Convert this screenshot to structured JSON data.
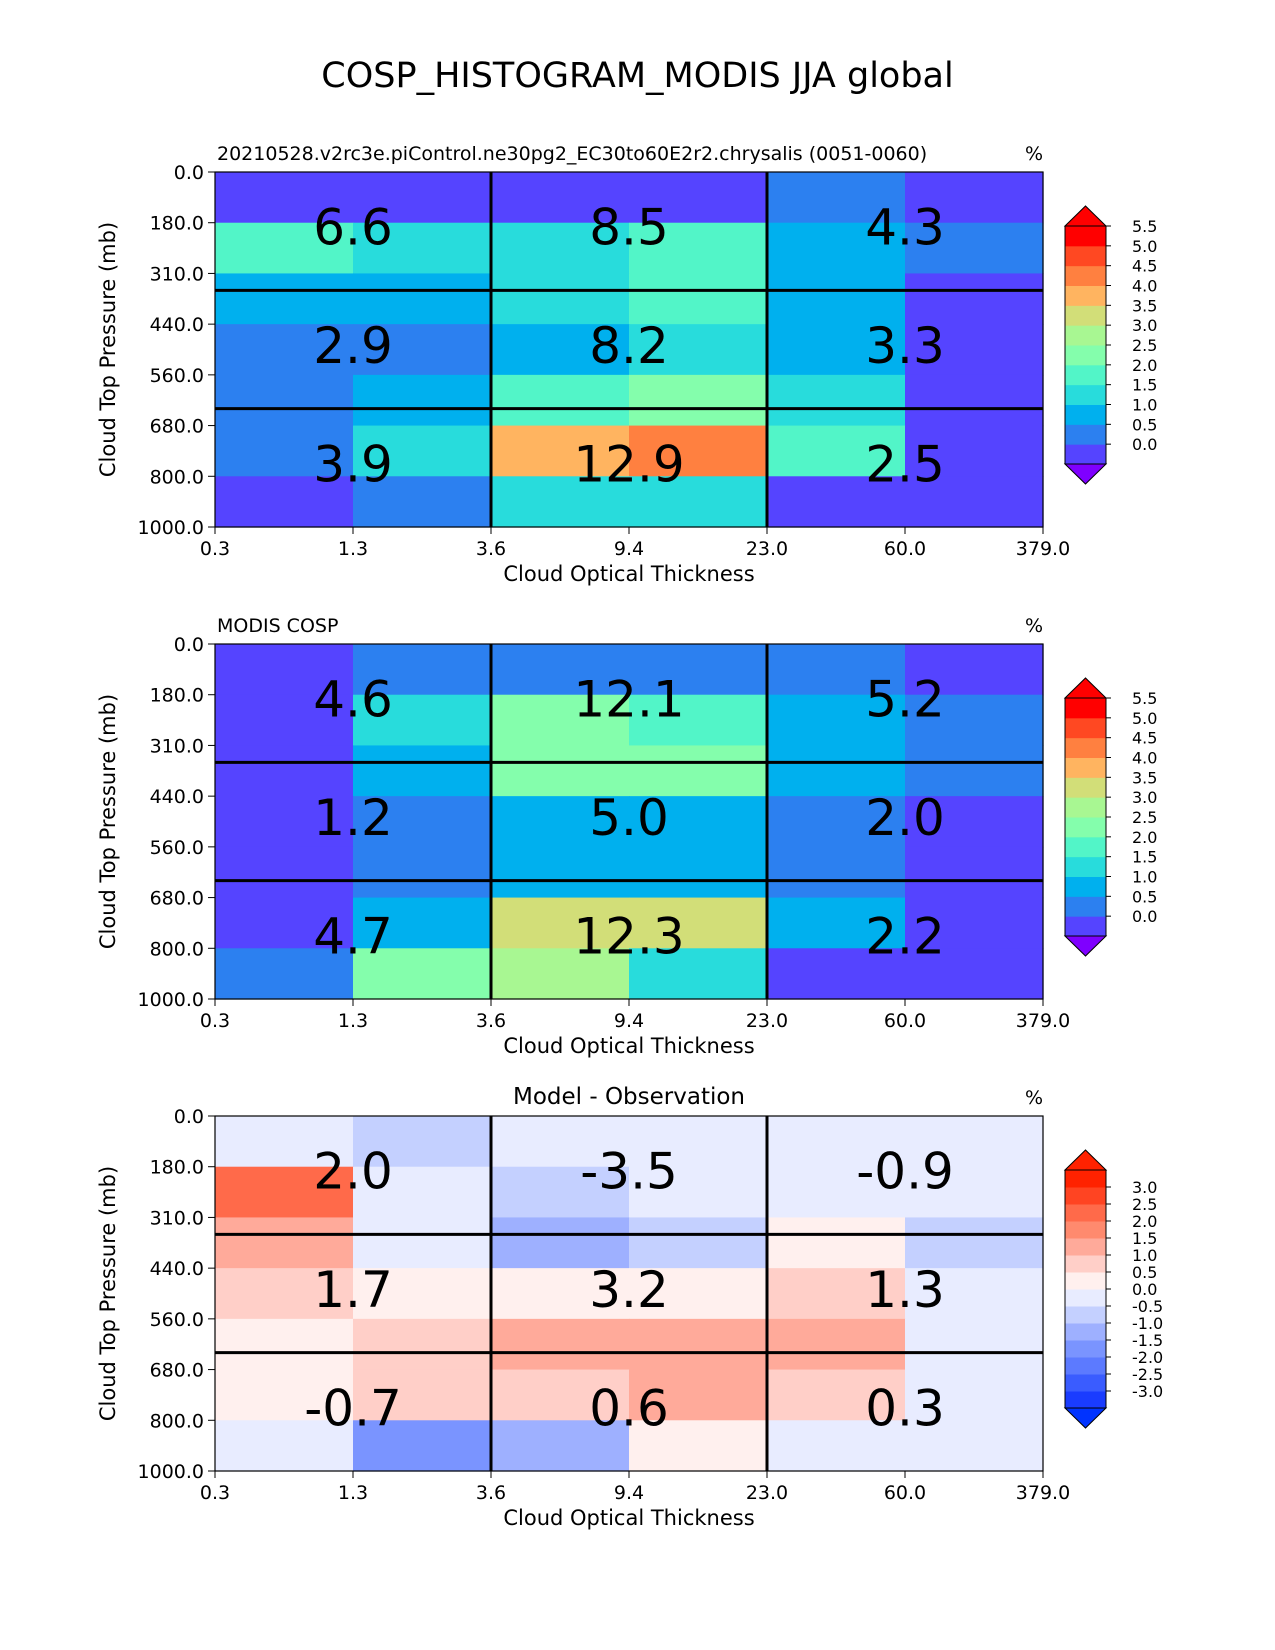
{
  "figure_title": "COSP_HISTOGRAM_MODIS JJA global",
  "chart_data": [
    {
      "type": "heatmap",
      "title": "20210528.v2rc3e.piControl.ne30pg2_EC30to60E2r2.chrysalis (0051-0060)",
      "title_align": "left",
      "units": "%",
      "xlabel": "Cloud Optical Thickness",
      "ylabel": "Cloud Top Pressure (mb)",
      "x_ticks": [
        "0.3",
        "1.3",
        "3.6",
        "9.4",
        "23.0",
        "60.0",
        "379.0"
      ],
      "y_ticks": [
        "0.0",
        "180.0",
        "310.0",
        "440.0",
        "560.0",
        "680.0",
        "800.0",
        "1000.0"
      ],
      "cells": [
        [
          0.25,
          0.25,
          0.25,
          0.25,
          0.75,
          0.25
        ],
        [
          2.25,
          1.75,
          1.75,
          2.25,
          1.25,
          0.75
        ],
        [
          1.25,
          1.25,
          1.75,
          2.25,
          1.25,
          0.25
        ],
        [
          0.75,
          0.75,
          1.25,
          1.75,
          1.25,
          0.25
        ],
        [
          0.75,
          1.25,
          2.25,
          2.75,
          1.75,
          0.25
        ],
        [
          0.75,
          1.75,
          4.25,
          4.75,
          2.25,
          0.25
        ],
        [
          0.25,
          0.75,
          1.75,
          1.75,
          0.25,
          0.25
        ]
      ],
      "annotations": [
        [
          "6.6",
          "8.5",
          "4.3"
        ],
        [
          "2.9",
          "8.2",
          "3.3"
        ],
        [
          "3.9",
          "12.9",
          "2.5"
        ]
      ],
      "colorbar": {
        "levels": [
          0.0,
          0.5,
          1.0,
          1.5,
          2.0,
          2.5,
          3.0,
          3.5,
          4.0,
          4.5,
          5.0,
          5.5
        ],
        "tick_labels": [
          "0.0",
          "0.5",
          "1.0",
          "1.5",
          "2.0",
          "2.5",
          "3.0",
          "3.5",
          "4.0",
          "4.5",
          "5.0",
          "5.5"
        ],
        "colors": [
          "#5544ff",
          "#2c80f0",
          "#00b0ee",
          "#28dcdc",
          "#52f5c8",
          "#84feac",
          "#a8f792",
          "#d2de78",
          "#ffb460",
          "#ff8040",
          "#ff4822",
          "#ff0000"
        ],
        "under_color": "#7f00ff",
        "over_color": "#ff0000"
      }
    },
    {
      "type": "heatmap",
      "title": "MODIS COSP",
      "title_align": "left",
      "units": "%",
      "xlabel": "Cloud Optical Thickness",
      "ylabel": "Cloud Top Pressure (mb)",
      "x_ticks": [
        "0.3",
        "1.3",
        "3.6",
        "9.4",
        "23.0",
        "60.0",
        "379.0"
      ],
      "y_ticks": [
        "0.0",
        "180.0",
        "310.0",
        "440.0",
        "560.0",
        "680.0",
        "800.0",
        "1000.0"
      ],
      "cells": [
        [
          0.25,
          0.75,
          0.75,
          0.75,
          0.75,
          0.25
        ],
        [
          0.25,
          1.75,
          2.75,
          2.25,
          1.25,
          0.75
        ],
        [
          0.25,
          1.25,
          2.75,
          2.75,
          1.25,
          0.75
        ],
        [
          0.25,
          0.75,
          1.25,
          1.25,
          0.75,
          0.25
        ],
        [
          0.25,
          0.75,
          1.25,
          1.25,
          0.75,
          0.25
        ],
        [
          0.25,
          1.25,
          3.75,
          3.75,
          1.25,
          0.25
        ],
        [
          0.75,
          2.75,
          3.25,
          1.75,
          0.25,
          0.25
        ]
      ],
      "annotations": [
        [
          "4.6",
          "12.1",
          "5.2"
        ],
        [
          "1.2",
          "5.0",
          "2.0"
        ],
        [
          "4.7",
          "12.3",
          "2.2"
        ]
      ],
      "colorbar": {
        "levels": [
          0.0,
          0.5,
          1.0,
          1.5,
          2.0,
          2.5,
          3.0,
          3.5,
          4.0,
          4.5,
          5.0,
          5.5
        ],
        "tick_labels": [
          "0.0",
          "0.5",
          "1.0",
          "1.5",
          "2.0",
          "2.5",
          "3.0",
          "3.5",
          "4.0",
          "4.5",
          "5.0",
          "5.5"
        ],
        "colors": [
          "#5544ff",
          "#2c80f0",
          "#00b0ee",
          "#28dcdc",
          "#52f5c8",
          "#84feac",
          "#a8f792",
          "#d2de78",
          "#ffb460",
          "#ff8040",
          "#ff4822",
          "#ff0000"
        ],
        "under_color": "#7f00ff",
        "over_color": "#ff0000"
      }
    },
    {
      "type": "heatmap",
      "title": "Model - Observation",
      "title_align": "center",
      "units": "%",
      "xlabel": "Cloud Optical Thickness",
      "ylabel": "Cloud Top Pressure (mb)",
      "x_ticks": [
        "0.3",
        "1.3",
        "3.6",
        "9.4",
        "23.0",
        "60.0",
        "379.0"
      ],
      "y_ticks": [
        "0.0",
        "180.0",
        "310.0",
        "440.0",
        "560.0",
        "680.0",
        "800.0",
        "1000.0"
      ],
      "cells": [
        [
          -0.25,
          -0.75,
          -0.25,
          -0.25,
          -0.25,
          -0.25
        ],
        [
          2.25,
          -0.25,
          -0.75,
          -0.25,
          -0.25,
          -0.25
        ],
        [
          1.25,
          -0.25,
          -1.25,
          -0.75,
          0.25,
          -0.75
        ],
        [
          0.75,
          0.25,
          0.25,
          0.25,
          0.75,
          -0.25
        ],
        [
          0.25,
          0.75,
          1.25,
          1.25,
          1.25,
          -0.25
        ],
        [
          0.25,
          0.75,
          0.75,
          1.25,
          0.75,
          -0.25
        ],
        [
          -0.25,
          -1.75,
          -1.25,
          0.25,
          -0.25,
          -0.25
        ]
      ],
      "annotations": [
        [
          "2.0",
          "-3.5",
          "-0.9"
        ],
        [
          "1.7",
          "3.2",
          "1.3"
        ],
        [
          "-0.7",
          "0.6",
          "0.3"
        ]
      ],
      "colorbar": {
        "levels": [
          -3.0,
          -2.5,
          -2.0,
          -1.5,
          -1.0,
          -0.5,
          0.0,
          0.5,
          1.0,
          1.5,
          2.0,
          2.5,
          3.0
        ],
        "tick_labels": [
          "-3.0",
          "-2.5",
          "-2.0",
          "-1.5",
          "-1.0",
          "-0.5",
          "0.0",
          "0.5",
          "1.0",
          "1.5",
          "2.0",
          "2.5",
          "3.0"
        ],
        "colors": [
          "#1a3cff",
          "#3a5cff",
          "#5c7aff",
          "#7a94ff",
          "#9eb0ff",
          "#c4d0ff",
          "#e8ecff",
          "#fff0ee",
          "#ffcfc8",
          "#ffaa9a",
          "#ff8a6e",
          "#ff6a4a",
          "#ff4422",
          "#ff2200"
        ],
        "under_color": "#0033ff",
        "over_color": "#ff2200"
      }
    }
  ]
}
